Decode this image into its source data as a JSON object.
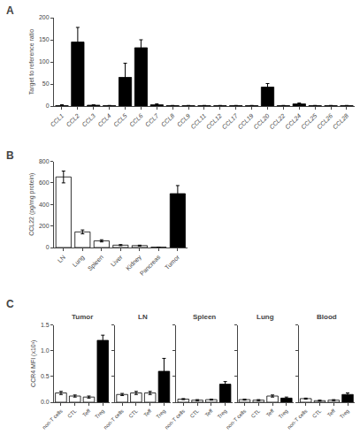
{
  "chart_data": [
    {
      "type": "bar",
      "annotations": [
        {
          "text": "A"
        }
      ],
      "categories": [
        "CCL1",
        "CCL2",
        "CCL3",
        "CCL4",
        "CCL5",
        "CCL6",
        "CCL7",
        "CCL8",
        "CCL9",
        "CCL11",
        "CCL12",
        "CCL17",
        "CCL19",
        "CCL20",
        "CCL22",
        "CCL24",
        "CCL25",
        "CCL26",
        "CCL28"
      ],
      "values": [
        1,
        145,
        2,
        1,
        65,
        132,
        3,
        1,
        1,
        1,
        1,
        1,
        1,
        43,
        1,
        5,
        1,
        1,
        1
      ],
      "errors": [
        2,
        33,
        1,
        0.5,
        32,
        18,
        2,
        0.5,
        0.5,
        0.5,
        0.5,
        0.5,
        0.5,
        8,
        0.5,
        2,
        0.5,
        0.5,
        0.5
      ],
      "color": "black",
      "ylabel": "Target to reference ratio",
      "ylim": [
        0,
        200
      ],
      "yticks": [
        0,
        50,
        100,
        150,
        200
      ],
      "grid": false
    },
    {
      "type": "bar",
      "annotations": [
        {
          "text": "B"
        }
      ],
      "categories": [
        "LN",
        "Lung",
        "Spleen",
        "Liver",
        "Kidney",
        "Pancreas",
        "Tumor"
      ],
      "values": [
        655,
        145,
        62,
        22,
        18,
        3,
        500
      ],
      "errors": [
        55,
        18,
        10,
        5,
        4,
        1,
        75
      ],
      "colors": [
        "white",
        "white",
        "white",
        "white",
        "white",
        "white",
        "black"
      ],
      "ylabel": "CCL22 (pg/mg protein)",
      "ylim": [
        0,
        800
      ],
      "yticks": [
        0,
        200,
        400,
        600,
        800
      ],
      "grid": false
    },
    {
      "type": "bar",
      "title": "Tumor",
      "annotations": [
        {
          "text": "C"
        }
      ],
      "categories": [
        "non-T cells",
        "CTL",
        "Teff",
        "Treg"
      ],
      "values": [
        0.18,
        0.12,
        0.1,
        1.2
      ],
      "errors": [
        0.03,
        0.02,
        0.02,
        0.1
      ],
      "colors": [
        "white",
        "white",
        "white",
        "black"
      ],
      "ylabel": "CCR4 MFI (x10³)",
      "ylim": [
        0,
        1.5
      ],
      "yticks": [
        {
          "value": 0,
          "label": "0.0"
        },
        0.5,
        {
          "value": 1,
          "label": "1.0"
        },
        1.5
      ],
      "grid": false
    },
    {
      "type": "bar",
      "title": "LN",
      "categories": [
        "non-T cells",
        "CTL",
        "Teff",
        "Treg"
      ],
      "values": [
        0.15,
        0.18,
        0.18,
        0.6
      ],
      "errors": [
        0.02,
        0.03,
        0.03,
        0.25
      ],
      "colors": [
        "white",
        "white",
        "white",
        "black"
      ],
      "ylim": [
        0,
        1.5
      ],
      "yticks": [
        {
          "value": 0,
          "label": "0.0"
        },
        0.5,
        {
          "value": 1,
          "label": "1.0"
        },
        1.5
      ],
      "tick_labels": "x",
      "grid": false
    },
    {
      "type": "bar",
      "title": "Spleen",
      "categories": [
        "non-T cells",
        "CTL",
        "Teff",
        "Treg"
      ],
      "values": [
        0.06,
        0.04,
        0.05,
        0.35
      ],
      "errors": [
        0.01,
        0.01,
        0.01,
        0.05
      ],
      "colors": [
        "white",
        "white",
        "white",
        "black"
      ],
      "ylim": [
        0,
        1.5
      ],
      "yticks": [
        {
          "value": 0,
          "label": "0.0"
        },
        0.5,
        {
          "value": 1,
          "label": "1.0"
        },
        1.5
      ],
      "tick_labels": "x",
      "grid": false
    },
    {
      "type": "bar",
      "title": "Lung",
      "categories": [
        "non-T cells",
        "CTL",
        "Teff",
        "Treg"
      ],
      "values": [
        0.05,
        0.04,
        0.12,
        0.08
      ],
      "errors": [
        0.01,
        0.01,
        0.02,
        0.02
      ],
      "colors": [
        "white",
        "white",
        "white",
        "black"
      ],
      "ylim": [
        0,
        1.5
      ],
      "yticks": [
        {
          "value": 0,
          "label": "0.0"
        },
        0.5,
        {
          "value": 1,
          "label": "1.0"
        },
        1.5
      ],
      "tick_labels": "x",
      "grid": false
    },
    {
      "type": "bar",
      "title": "Blood",
      "categories": [
        "non-T cells",
        "CTL",
        "Teff",
        "Treg"
      ],
      "values": [
        0.07,
        0.03,
        0.04,
        0.15
      ],
      "errors": [
        0.01,
        0.01,
        0.01,
        0.03
      ],
      "colors": [
        "white",
        "white",
        "white",
        "black"
      ],
      "ylim": [
        0,
        1.5
      ],
      "yticks": [
        {
          "value": 0,
          "label": "0.0"
        },
        0.5,
        {
          "value": 1,
          "label": "1.0"
        },
        1.5
      ],
      "tick_labels": "x",
      "grid": false
    }
  ]
}
